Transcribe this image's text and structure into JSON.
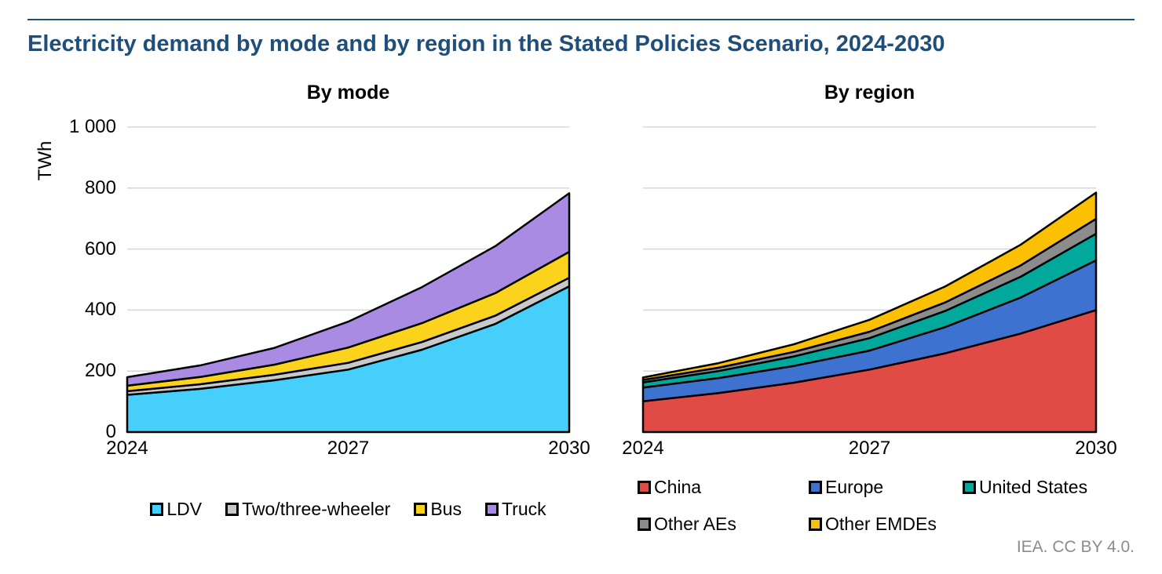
{
  "header": {
    "title": "Electricity demand by mode and by region in the Stated Policies Scenario, 2024-2030"
  },
  "footer": {
    "credit": "IEA. CC BY 4.0."
  },
  "y_axis": {
    "unit": "TWh",
    "ticks": [
      "1 000",
      "800",
      "600",
      "400",
      "200",
      "0"
    ]
  },
  "x_axis": {
    "ticks": [
      "2024",
      "2027",
      "2030"
    ]
  },
  "colors": {
    "title_navy": "#1F4E79",
    "gridline": "#D9D9D9",
    "area_outline": "#000000",
    "footer_gray": "#8B8B8B"
  },
  "chart_data": [
    {
      "type": "area",
      "stacked": true,
      "title": "By mode",
      "x": [
        2024,
        2025,
        2026,
        2027,
        2028,
        2029,
        2030
      ],
      "x_tick_labels": [
        "2024",
        "2027",
        "2030"
      ],
      "ylabel": "TWh",
      "ylim": [
        0,
        1000
      ],
      "ystep": 200,
      "grid": true,
      "legend_position": "bottom",
      "series": [
        {
          "name": "LDV",
          "color": "#45CFFA",
          "values": [
            122,
            142,
            170,
            205,
            270,
            355,
            478
          ]
        },
        {
          "name": "Two/three-wheeler",
          "color": "#C9C9C9",
          "values": [
            12,
            15,
            18,
            22,
            25,
            27,
            28
          ]
        },
        {
          "name": "Bus",
          "color": "#FBD21C",
          "values": [
            18,
            24,
            33,
            50,
            62,
            74,
            85
          ]
        },
        {
          "name": "Truck",
          "color": "#A98BE3",
          "values": [
            28,
            38,
            55,
            85,
            118,
            154,
            192
          ]
        }
      ]
    },
    {
      "type": "area",
      "stacked": true,
      "title": "By region",
      "x": [
        2024,
        2025,
        2026,
        2027,
        2028,
        2029,
        2030
      ],
      "x_tick_labels": [
        "2024",
        "2027",
        "2030"
      ],
      "ylabel": "TWh",
      "ylim": [
        0,
        1000
      ],
      "ystep": 200,
      "grid": true,
      "legend_position": "bottom",
      "series": [
        {
          "name": "China",
          "color": "#E04B45",
          "values": [
            101,
            128,
            162,
            205,
            258,
            323,
            400
          ]
        },
        {
          "name": "Europe",
          "color": "#3D72D0",
          "values": [
            45,
            49,
            55,
            62,
            86,
            118,
            163
          ]
        },
        {
          "name": "United States",
          "color": "#00A99C",
          "values": [
            17,
            23,
            31,
            41,
            53,
            68,
            87
          ]
        },
        {
          "name": "Other AEs",
          "color": "#8C8C8C",
          "values": [
            8,
            11,
            15,
            21,
            28,
            37,
            49
          ]
        },
        {
          "name": "Other EMDEs",
          "color": "#FCC003",
          "values": [
            8,
            15,
            25,
            39,
            52,
            68,
            86
          ]
        }
      ]
    }
  ]
}
